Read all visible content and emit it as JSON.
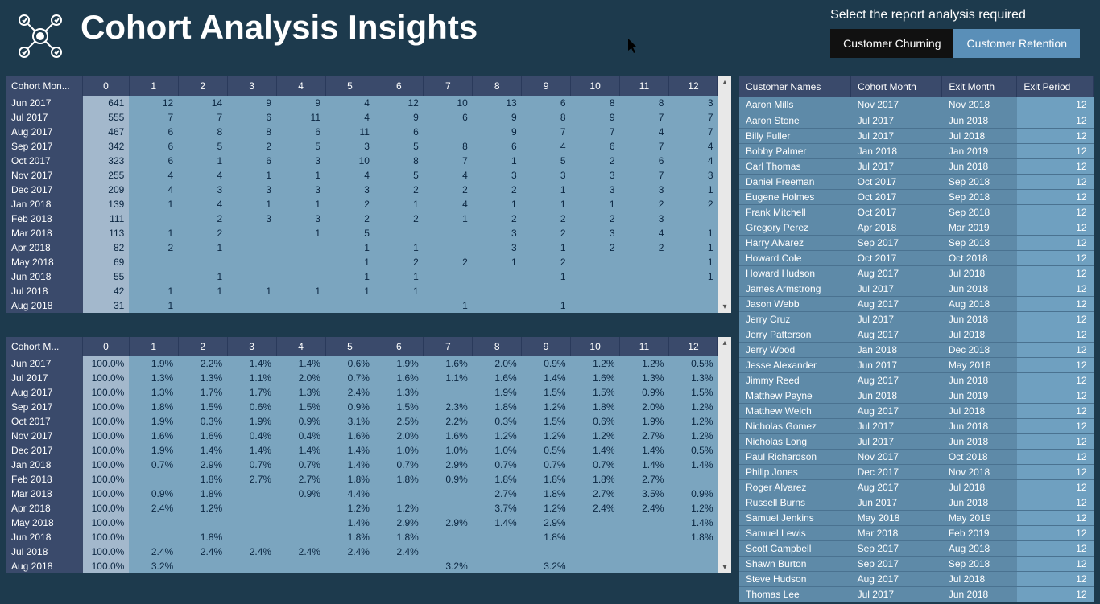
{
  "header": {
    "title": "Cohort Analysis Insights",
    "report_label": "Select the report analysis required",
    "btn_churning": "Customer Churning",
    "btn_retention": "Customer Retention"
  },
  "colors": {
    "page_bg": "#1d3a4d",
    "header_bg": "#3a4a6b",
    "cell_bg": "#7ba5bf",
    "col0_bg": "#a3b8cc",
    "rowhdr_bg": "#3a4a6b",
    "cust_row_bg": "#5e8aa8",
    "btn_inactive": "#111111",
    "btn_active": "#5a8fb8"
  },
  "matrix1": {
    "row_header": "Cohort Mon...",
    "cols": [
      "0",
      "1",
      "2",
      "3",
      "4",
      "5",
      "6",
      "7",
      "8",
      "9",
      "10",
      "11",
      "12"
    ],
    "rows": [
      {
        "label": "Jun 2017",
        "vals": [
          "641",
          "12",
          "14",
          "9",
          "9",
          "4",
          "12",
          "10",
          "13",
          "6",
          "8",
          "8",
          "3"
        ]
      },
      {
        "label": "Jul 2017",
        "vals": [
          "555",
          "7",
          "7",
          "6",
          "11",
          "4",
          "9",
          "6",
          "9",
          "8",
          "9",
          "7",
          "7"
        ]
      },
      {
        "label": "Aug 2017",
        "vals": [
          "467",
          "6",
          "8",
          "8",
          "6",
          "11",
          "6",
          "",
          "9",
          "7",
          "7",
          "4",
          "7"
        ]
      },
      {
        "label": "Sep 2017",
        "vals": [
          "342",
          "6",
          "5",
          "2",
          "5",
          "3",
          "5",
          "8",
          "6",
          "4",
          "6",
          "7",
          "4"
        ]
      },
      {
        "label": "Oct 2017",
        "vals": [
          "323",
          "6",
          "1",
          "6",
          "3",
          "10",
          "8",
          "7",
          "1",
          "5",
          "2",
          "6",
          "4"
        ]
      },
      {
        "label": "Nov 2017",
        "vals": [
          "255",
          "4",
          "4",
          "1",
          "1",
          "4",
          "5",
          "4",
          "3",
          "3",
          "3",
          "7",
          "3"
        ]
      },
      {
        "label": "Dec 2017",
        "vals": [
          "209",
          "4",
          "3",
          "3",
          "3",
          "3",
          "2",
          "2",
          "2",
          "1",
          "3",
          "3",
          "1"
        ]
      },
      {
        "label": "Jan 2018",
        "vals": [
          "139",
          "1",
          "4",
          "1",
          "1",
          "2",
          "1",
          "4",
          "1",
          "1",
          "1",
          "2",
          "2"
        ]
      },
      {
        "label": "Feb 2018",
        "vals": [
          "111",
          "",
          "2",
          "3",
          "3",
          "2",
          "2",
          "1",
          "2",
          "2",
          "2",
          "3",
          ""
        ]
      },
      {
        "label": "Mar 2018",
        "vals": [
          "113",
          "1",
          "2",
          "",
          "1",
          "5",
          "",
          "",
          "3",
          "2",
          "3",
          "4",
          "1"
        ]
      },
      {
        "label": "Apr 2018",
        "vals": [
          "82",
          "2",
          "1",
          "",
          "",
          "1",
          "1",
          "",
          "3",
          "1",
          "2",
          "2",
          "1"
        ]
      },
      {
        "label": "May 2018",
        "vals": [
          "69",
          "",
          "",
          "",
          "",
          "1",
          "2",
          "2",
          "1",
          "2",
          "",
          "",
          "1"
        ]
      },
      {
        "label": "Jun 2018",
        "vals": [
          "55",
          "",
          "1",
          "",
          "",
          "1",
          "1",
          "",
          "",
          "1",
          "",
          "",
          "1"
        ]
      },
      {
        "label": "Jul 2018",
        "vals": [
          "42",
          "1",
          "1",
          "1",
          "1",
          "1",
          "1",
          "",
          "",
          "",
          "",
          "",
          ""
        ]
      },
      {
        "label": "Aug 2018",
        "vals": [
          "31",
          "1",
          "",
          "",
          "",
          "",
          "",
          "1",
          "",
          "1",
          "",
          "",
          ""
        ]
      }
    ]
  },
  "matrix2": {
    "row_header": "Cohort M...",
    "cols": [
      "0",
      "1",
      "2",
      "3",
      "4",
      "5",
      "6",
      "7",
      "8",
      "9",
      "10",
      "11",
      "12"
    ],
    "rows": [
      {
        "label": "Jun 2017",
        "vals": [
          "100.0%",
          "1.9%",
          "2.2%",
          "1.4%",
          "1.4%",
          "0.6%",
          "1.9%",
          "1.6%",
          "2.0%",
          "0.9%",
          "1.2%",
          "1.2%",
          "0.5%"
        ]
      },
      {
        "label": "Jul 2017",
        "vals": [
          "100.0%",
          "1.3%",
          "1.3%",
          "1.1%",
          "2.0%",
          "0.7%",
          "1.6%",
          "1.1%",
          "1.6%",
          "1.4%",
          "1.6%",
          "1.3%",
          "1.3%"
        ]
      },
      {
        "label": "Aug 2017",
        "vals": [
          "100.0%",
          "1.3%",
          "1.7%",
          "1.7%",
          "1.3%",
          "2.4%",
          "1.3%",
          "",
          "1.9%",
          "1.5%",
          "1.5%",
          "0.9%",
          "1.5%"
        ]
      },
      {
        "label": "Sep 2017",
        "vals": [
          "100.0%",
          "1.8%",
          "1.5%",
          "0.6%",
          "1.5%",
          "0.9%",
          "1.5%",
          "2.3%",
          "1.8%",
          "1.2%",
          "1.8%",
          "2.0%",
          "1.2%"
        ]
      },
      {
        "label": "Oct 2017",
        "vals": [
          "100.0%",
          "1.9%",
          "0.3%",
          "1.9%",
          "0.9%",
          "3.1%",
          "2.5%",
          "2.2%",
          "0.3%",
          "1.5%",
          "0.6%",
          "1.9%",
          "1.2%"
        ]
      },
      {
        "label": "Nov 2017",
        "vals": [
          "100.0%",
          "1.6%",
          "1.6%",
          "0.4%",
          "0.4%",
          "1.6%",
          "2.0%",
          "1.6%",
          "1.2%",
          "1.2%",
          "1.2%",
          "2.7%",
          "1.2%"
        ]
      },
      {
        "label": "Dec 2017",
        "vals": [
          "100.0%",
          "1.9%",
          "1.4%",
          "1.4%",
          "1.4%",
          "1.4%",
          "1.0%",
          "1.0%",
          "1.0%",
          "0.5%",
          "1.4%",
          "1.4%",
          "0.5%"
        ]
      },
      {
        "label": "Jan 2018",
        "vals": [
          "100.0%",
          "0.7%",
          "2.9%",
          "0.7%",
          "0.7%",
          "1.4%",
          "0.7%",
          "2.9%",
          "0.7%",
          "0.7%",
          "0.7%",
          "1.4%",
          "1.4%"
        ]
      },
      {
        "label": "Feb 2018",
        "vals": [
          "100.0%",
          "",
          "1.8%",
          "2.7%",
          "2.7%",
          "1.8%",
          "1.8%",
          "0.9%",
          "1.8%",
          "1.8%",
          "1.8%",
          "2.7%",
          ""
        ]
      },
      {
        "label": "Mar 2018",
        "vals": [
          "100.0%",
          "0.9%",
          "1.8%",
          "",
          "0.9%",
          "4.4%",
          "",
          "",
          "2.7%",
          "1.8%",
          "2.7%",
          "3.5%",
          "0.9%"
        ]
      },
      {
        "label": "Apr 2018",
        "vals": [
          "100.0%",
          "2.4%",
          "1.2%",
          "",
          "",
          "1.2%",
          "1.2%",
          "",
          "3.7%",
          "1.2%",
          "2.4%",
          "2.4%",
          "1.2%"
        ]
      },
      {
        "label": "May 2018",
        "vals": [
          "100.0%",
          "",
          "",
          "",
          "",
          "1.4%",
          "2.9%",
          "2.9%",
          "1.4%",
          "2.9%",
          "",
          "",
          "1.4%"
        ]
      },
      {
        "label": "Jun 2018",
        "vals": [
          "100.0%",
          "",
          "1.8%",
          "",
          "",
          "1.8%",
          "1.8%",
          "",
          "",
          "1.8%",
          "",
          "",
          "1.8%"
        ]
      },
      {
        "label": "Jul 2018",
        "vals": [
          "100.0%",
          "2.4%",
          "2.4%",
          "2.4%",
          "2.4%",
          "2.4%",
          "2.4%",
          "",
          "",
          "",
          "",
          "",
          ""
        ]
      },
      {
        "label": "Aug 2018",
        "vals": [
          "100.0%",
          "3.2%",
          "",
          "",
          "",
          "",
          "",
          "3.2%",
          "",
          "3.2%",
          "",
          "",
          ""
        ]
      }
    ]
  },
  "customers": {
    "headers": [
      "Customer Names",
      "Cohort Month",
      "Exit Month",
      "Exit Period"
    ],
    "rows": [
      [
        "Aaron Mills",
        "Nov 2017",
        "Nov 2018",
        "12"
      ],
      [
        "Aaron Stone",
        "Jul 2017",
        "Jun 2018",
        "12"
      ],
      [
        "Billy Fuller",
        "Jul 2017",
        "Jul 2018",
        "12"
      ],
      [
        "Bobby Palmer",
        "Jan 2018",
        "Jan 2019",
        "12"
      ],
      [
        "Carl Thomas",
        "Jul 2017",
        "Jun 2018",
        "12"
      ],
      [
        "Daniel Freeman",
        "Oct 2017",
        "Sep 2018",
        "12"
      ],
      [
        "Eugene Holmes",
        "Oct 2017",
        "Sep 2018",
        "12"
      ],
      [
        "Frank Mitchell",
        "Oct 2017",
        "Sep 2018",
        "12"
      ],
      [
        "Gregory Perez",
        "Apr 2018",
        "Mar 2019",
        "12"
      ],
      [
        "Harry Alvarez",
        "Sep 2017",
        "Sep 2018",
        "12"
      ],
      [
        "Howard Cole",
        "Oct 2017",
        "Oct 2018",
        "12"
      ],
      [
        "Howard Hudson",
        "Aug 2017",
        "Jul 2018",
        "12"
      ],
      [
        "James Armstrong",
        "Jul 2017",
        "Jun 2018",
        "12"
      ],
      [
        "Jason Webb",
        "Aug 2017",
        "Aug 2018",
        "12"
      ],
      [
        "Jerry Cruz",
        "Jul 2017",
        "Jun 2018",
        "12"
      ],
      [
        "Jerry Patterson",
        "Aug 2017",
        "Jul 2018",
        "12"
      ],
      [
        "Jerry Wood",
        "Jan 2018",
        "Dec 2018",
        "12"
      ],
      [
        "Jesse Alexander",
        "Jun 2017",
        "May 2018",
        "12"
      ],
      [
        "Jimmy Reed",
        "Aug 2017",
        "Jun 2018",
        "12"
      ],
      [
        "Matthew Payne",
        "Jun 2018",
        "Jun 2019",
        "12"
      ],
      [
        "Matthew Welch",
        "Aug 2017",
        "Jul 2018",
        "12"
      ],
      [
        "Nicholas Gomez",
        "Jul 2017",
        "Jun 2018",
        "12"
      ],
      [
        "Nicholas Long",
        "Jul 2017",
        "Jun 2018",
        "12"
      ],
      [
        "Paul Richardson",
        "Nov 2017",
        "Oct 2018",
        "12"
      ],
      [
        "Philip Jones",
        "Dec 2017",
        "Nov 2018",
        "12"
      ],
      [
        "Roger Alvarez",
        "Aug 2017",
        "Jul 2018",
        "12"
      ],
      [
        "Russell Burns",
        "Jun 2017",
        "Jun 2018",
        "12"
      ],
      [
        "Samuel Jenkins",
        "May 2018",
        "May 2019",
        "12"
      ],
      [
        "Samuel Lewis",
        "Mar 2018",
        "Feb 2019",
        "12"
      ],
      [
        "Scott Campbell",
        "Sep 2017",
        "Aug 2018",
        "12"
      ],
      [
        "Shawn Burton",
        "Sep 2017",
        "Sep 2018",
        "12"
      ],
      [
        "Steve Hudson",
        "Aug 2017",
        "Jul 2018",
        "12"
      ],
      [
        "Thomas Lee",
        "Jul 2017",
        "Jun 2018",
        "12"
      ]
    ]
  }
}
